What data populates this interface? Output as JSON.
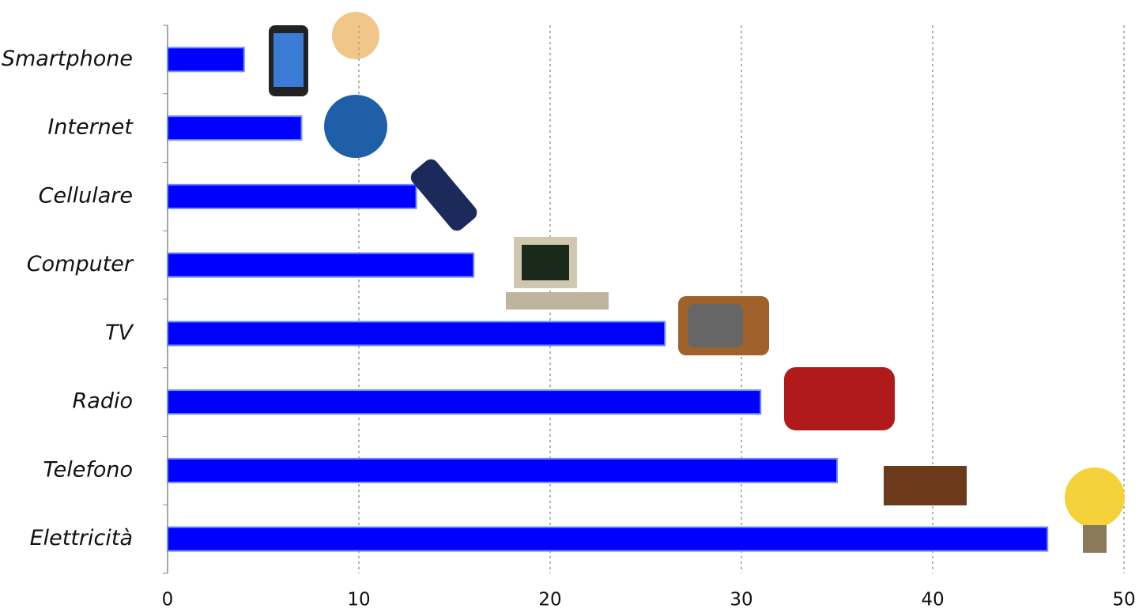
{
  "chart_data": {
    "type": "bar",
    "orientation": "horizontal",
    "categories": [
      "Smartphone",
      "Internet",
      "Cellulare",
      "Computer",
      "TV",
      "Radio",
      "Telefono",
      "Elettricità"
    ],
    "values": [
      4,
      7,
      13,
      16,
      26,
      31,
      35,
      46
    ],
    "color": "#0000ff",
    "xlim": [
      0,
      50
    ],
    "xticks": [
      0,
      10,
      20,
      30,
      40,
      50
    ],
    "grid": true
  }
}
